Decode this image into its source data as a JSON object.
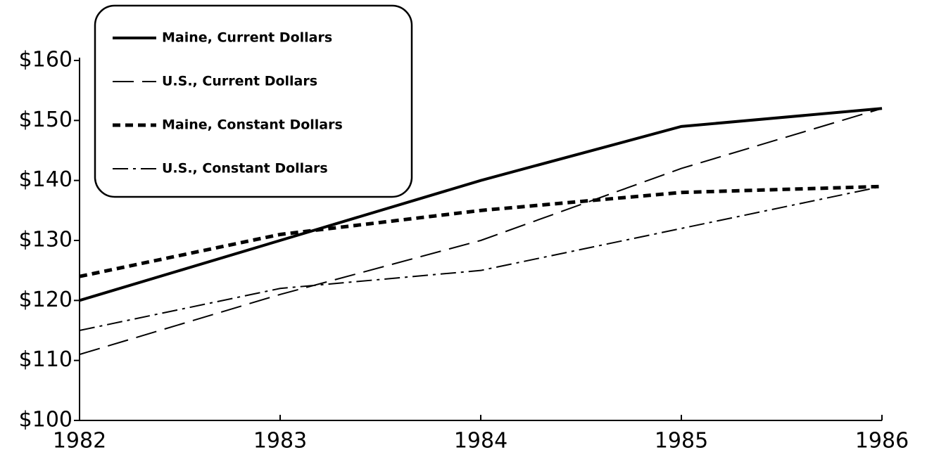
{
  "chart_data": {
    "type": "line",
    "categories": [
      "1982",
      "1983",
      "1984",
      "1985",
      "1986"
    ],
    "series": [
      {
        "name": "Maine, Current Dollars",
        "color": "#000000",
        "style": "solid",
        "values": [
          120,
          130,
          140,
          149,
          152
        ]
      },
      {
        "name": "U.S., Current Dollars",
        "color": "#000000",
        "style": "dashed",
        "values": [
          111,
          121,
          130,
          142,
          152
        ]
      },
      {
        "name": "Maine, Constant Dollars",
        "color": "#000000",
        "style": "dotted",
        "values": [
          124,
          131,
          135,
          138,
          139
        ]
      },
      {
        "name": "U.S., Constant Dollars",
        "color": "#000000",
        "style": "dashdot",
        "values": [
          115,
          122,
          125,
          132,
          139
        ]
      }
    ],
    "ylim": [
      100,
      160
    ],
    "yticks": [
      {
        "value": 100,
        "label": "$100"
      },
      {
        "value": 110,
        "label": "$110"
      },
      {
        "value": 120,
        "label": "$120"
      },
      {
        "value": 130,
        "label": "$130"
      },
      {
        "value": 140,
        "label": "$140"
      },
      {
        "value": 150,
        "label": "$150"
      },
      {
        "value": 160,
        "label": "$160"
      }
    ],
    "legend": "upper left",
    "grid": false
  }
}
